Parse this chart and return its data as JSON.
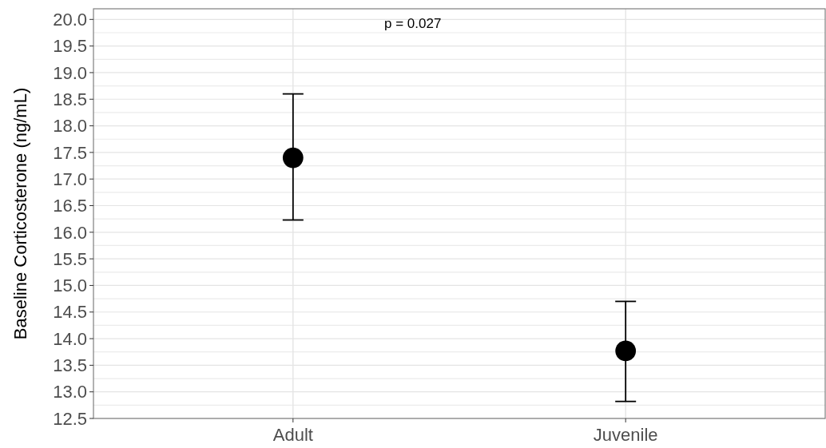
{
  "chart_data": {
    "type": "scatter",
    "ylabel": "Baseline Corticosterone (ng/mL)",
    "annotations": [
      "p = 0.027"
    ],
    "categories": [
      "Adult",
      "Juvenile"
    ],
    "series": [
      {
        "color": "#000000",
        "values": [
          17.4,
          13.77
        ],
        "errors": [
          [
            16.23,
            18.6
          ],
          [
            12.82,
            14.7
          ]
        ]
      }
    ],
    "ylim": [
      12.5,
      20.2
    ],
    "yticks": [
      12.5,
      {
        "value": 13,
        "label": "13.0"
      },
      13.5,
      {
        "value": 14,
        "label": "14.0"
      },
      14.5,
      {
        "value": 15,
        "label": "15.0"
      },
      15.5,
      {
        "value": 16,
        "label": "16.0"
      },
      16.5,
      {
        "value": 17,
        "label": "17.0"
      },
      17.5,
      {
        "value": 18,
        "label": "18.0"
      },
      18.5,
      {
        "value": 19,
        "label": "19.0"
      },
      19.5,
      {
        "value": 20,
        "label": "20.0"
      }
    ],
    "grid": true,
    "marker": "circle"
  }
}
